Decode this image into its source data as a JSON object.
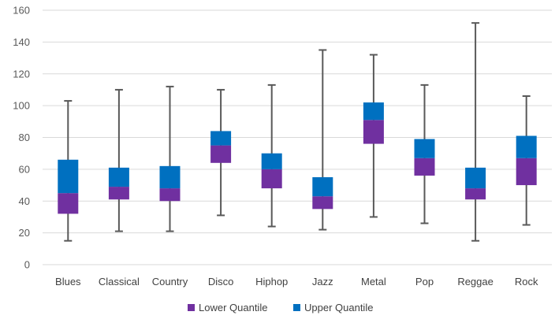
{
  "chart_data": {
    "type": "box",
    "title": "",
    "xlabel": "",
    "ylabel": "",
    "ylim": [
      0,
      160
    ],
    "yticks": [
      0,
      20,
      40,
      60,
      80,
      100,
      120,
      140,
      160
    ],
    "grid": true,
    "legend_position": "bottom",
    "colors": {
      "lower": "#7030A0",
      "upper": "#0070C0",
      "whisker": "#595959",
      "grid": "#D9D9D9"
    },
    "categories": [
      "Blues",
      "Classical",
      "Country",
      "Disco",
      "Hiphop",
      "Jazz",
      "Metal",
      "Pop",
      "Reggae",
      "Rock"
    ],
    "series": [
      {
        "name": "Lower Quantile",
        "key": "lower"
      },
      {
        "name": "Upper Quantile",
        "key": "upper"
      }
    ],
    "boxes": [
      {
        "min": 15,
        "q1": 32,
        "median": 45,
        "q3": 66,
        "max": 103
      },
      {
        "min": 21,
        "q1": 41,
        "median": 49,
        "q3": 61,
        "max": 110
      },
      {
        "min": 21,
        "q1": 40,
        "median": 48,
        "q3": 62,
        "max": 112
      },
      {
        "min": 31,
        "q1": 64,
        "median": 75,
        "q3": 84,
        "max": 110
      },
      {
        "min": 24,
        "q1": 48,
        "median": 60,
        "q3": 70,
        "max": 113
      },
      {
        "min": 22,
        "q1": 35,
        "median": 43,
        "q3": 55,
        "max": 135
      },
      {
        "min": 30,
        "q1": 76,
        "median": 91,
        "q3": 102,
        "max": 132
      },
      {
        "min": 26,
        "q1": 56,
        "median": 67,
        "q3": 79,
        "max": 113
      },
      {
        "min": 15,
        "q1": 41,
        "median": 48,
        "q3": 61,
        "max": 152
      },
      {
        "min": 25,
        "q1": 50,
        "median": 67,
        "q3": 81,
        "max": 106
      }
    ]
  }
}
